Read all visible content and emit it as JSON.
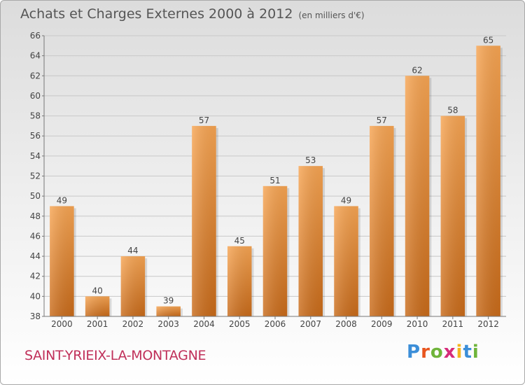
{
  "header": {
    "title": "Achats et Charges Externes 2000 à 2012",
    "unit": "(en milliers d'€)"
  },
  "footer": {
    "commune": "SAINT-YRIEIX-LA-MONTAGNE",
    "brand": "Proxiti",
    "brand_colors": [
      "#3b8ed8",
      "#e8551e",
      "#6fb43a",
      "#d62b7a",
      "#f4b51e",
      "#3b8ed8",
      "#6fb43a"
    ]
  },
  "colors": {
    "bar_light": "#f7a553",
    "bar_dark": "#c96b1a",
    "grid": "#c8c8c8",
    "commune": "#c0305a"
  },
  "chart_data": {
    "type": "bar",
    "title": "Achats et Charges Externes 2000 à 2012",
    "ylabel": "(en milliers d'€)",
    "categories": [
      "2000",
      "2001",
      "2002",
      "2003",
      "2004",
      "2005",
      "2006",
      "2007",
      "2008",
      "2009",
      "2010",
      "2011",
      "2012"
    ],
    "values": [
      49,
      40,
      44,
      39,
      57,
      45,
      51,
      53,
      49,
      57,
      62,
      58,
      65
    ],
    "ylim": [
      38,
      66
    ],
    "yticks": [
      "38",
      "40",
      "42",
      "44",
      "46",
      "48",
      "50",
      "52",
      "54",
      "56",
      "58",
      "60",
      "62",
      "64",
      "66"
    ],
    "grid": true,
    "legend": "none"
  }
}
